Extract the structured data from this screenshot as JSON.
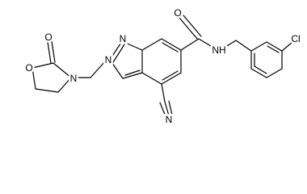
{
  "atoms": [
    "O",
    "O",
    "N",
    "N",
    "N",
    "N",
    "O",
    "NH",
    "Cl"
  ]
}
